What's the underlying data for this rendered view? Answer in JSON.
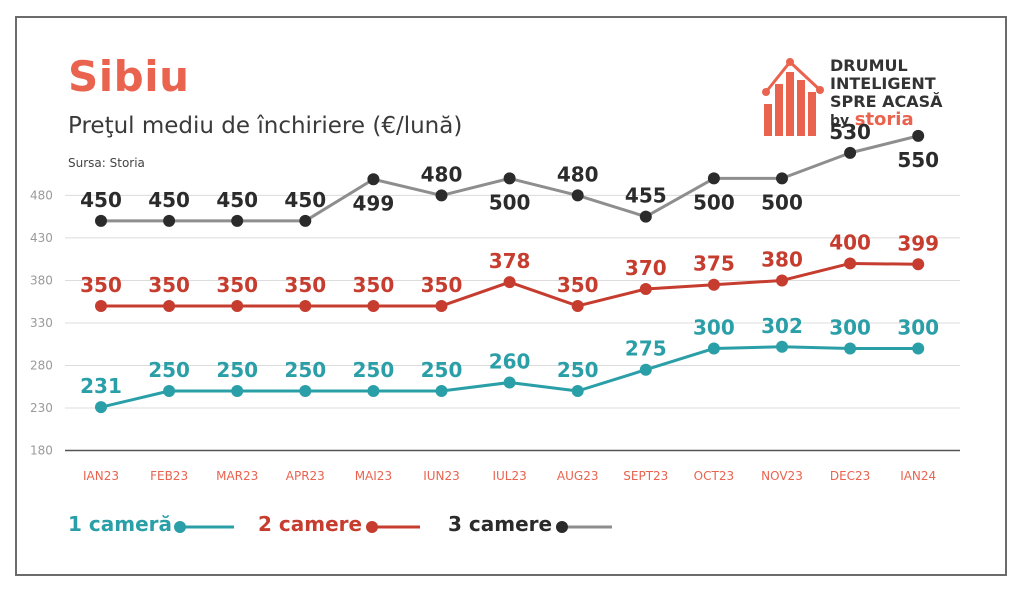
{
  "chart_data": {
    "type": "line",
    "title": "Sibiu",
    "subtitle": "Preţul mediu de închiriere (€/lună)",
    "source": "Sursa: Storia",
    "categories": [
      "IAN23",
      "FEB23",
      "MAR23",
      "APR23",
      "MAI23",
      "IUN23",
      "IUL23",
      "AUG23",
      "SEPT23",
      "OCT23",
      "NOV23",
      "DEC23",
      "IAN24"
    ],
    "y_ticks": [
      180,
      230,
      280,
      330,
      380,
      430,
      480
    ],
    "ylim": [
      180,
      550
    ],
    "grid": true,
    "series": [
      {
        "name": "1 cameră",
        "color": "#2a9fa8",
        "line_color": "#2a9fa8",
        "label_color": "#2a9fa8",
        "values": [
          231,
          250,
          250,
          250,
          250,
          250,
          260,
          250,
          275,
          300,
          302,
          300,
          300
        ]
      },
      {
        "name": "2 camere",
        "color": "#c63d2f",
        "line_color": "#c63d2f",
        "label_color": "#c63d2f",
        "values": [
          350,
          350,
          350,
          350,
          350,
          350,
          378,
          350,
          370,
          375,
          380,
          400,
          399
        ]
      },
      {
        "name": "3 camere",
        "color": "#2b2b2b",
        "line_color": "#8e8e8e",
        "label_color": "#2b2b2b",
        "values": [
          450,
          450,
          450,
          450,
          499,
          480,
          500,
          480,
          455,
          500,
          500,
          530,
          550
        ]
      }
    ],
    "legend_position": "bottom-left"
  },
  "logo": {
    "line1": "DRUMUL",
    "line2": "INTELIGENT",
    "line3": "SPRE ACASĂ",
    "by": "by",
    "brand": "storia",
    "accent": "#e9634f"
  }
}
